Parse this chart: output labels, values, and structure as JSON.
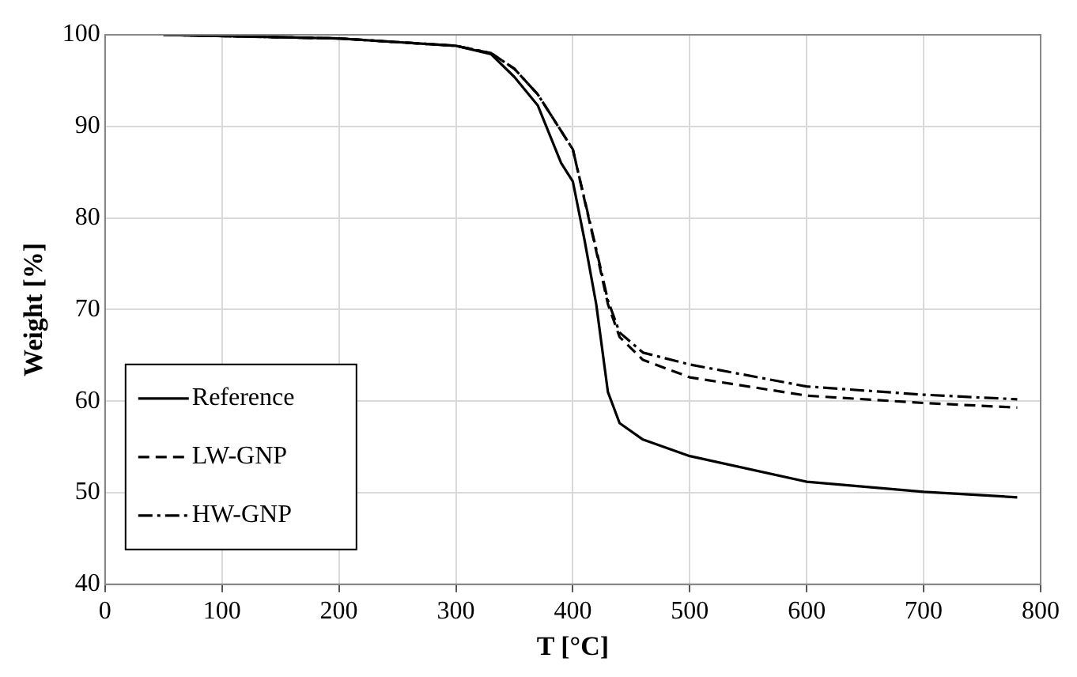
{
  "chart_data": {
    "type": "line",
    "xlabel": "T [°C]",
    "ylabel": "Weight [%]",
    "xlim": [
      0,
      800
    ],
    "xticks": [
      0,
      100,
      200,
      300,
      400,
      500,
      600,
      700,
      800
    ],
    "ylim": [
      40,
      100
    ],
    "yticks": [
      40,
      50,
      60,
      70,
      80,
      90,
      100
    ],
    "grid": true,
    "legend": "bottom left",
    "marker": "none",
    "series": [
      {
        "name": "Reference",
        "color": "#000000",
        "line_style": "solid",
        "x": [
          50,
          200,
          300,
          330,
          350,
          370,
          390,
          400,
          410,
          420,
          425,
          430,
          440,
          460,
          500,
          600,
          700,
          780
        ],
        "values": [
          100,
          99.6,
          98.8,
          97.9,
          95.4,
          92.3,
          86,
          84,
          77.6,
          70.6,
          65.8,
          61,
          57.6,
          55.8,
          54,
          51.2,
          50.1,
          49.5
        ]
      },
      {
        "name": "LW-GNP",
        "color": "#000000",
        "line_style": "dashed",
        "x": [
          50,
          200,
          300,
          330,
          350,
          370,
          400,
          420,
          430,
          440,
          460,
          500,
          600,
          700,
          780
        ],
        "values": [
          100,
          99.6,
          98.8,
          98,
          96.3,
          93.5,
          87.5,
          76.4,
          70.6,
          67,
          64.5,
          62.6,
          60.6,
          59.8,
          59.3
        ]
      },
      {
        "name": "HW-GNP",
        "color": "#000000",
        "line_style": "dashdot",
        "x": [
          50,
          200,
          300,
          330,
          350,
          370,
          400,
          420,
          430,
          440,
          460,
          500,
          600,
          700,
          780
        ],
        "values": [
          100,
          99.6,
          98.8,
          98,
          96.3,
          93.5,
          87.5,
          76.6,
          71,
          67.5,
          65.3,
          64,
          61.6,
          60.7,
          60.2
        ]
      }
    ]
  }
}
